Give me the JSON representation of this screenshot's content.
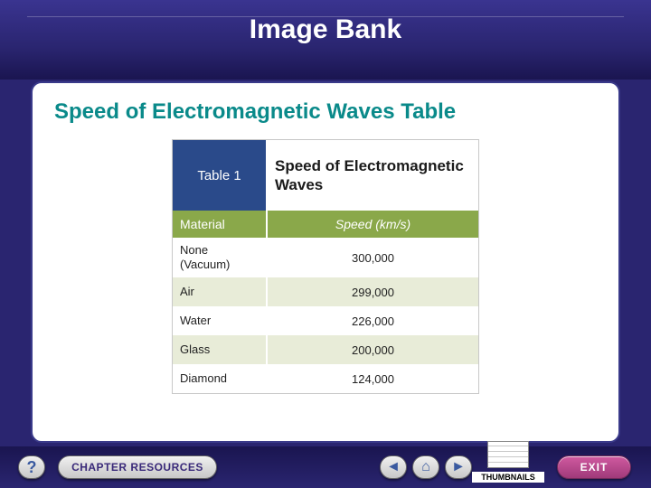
{
  "colors": {
    "page_bg": "#2a2570",
    "panel_bg": "#ffffff",
    "panel_border": "#3a3a8a",
    "title_color": "#ffffff",
    "slide_title_color": "#0a8a8a",
    "table_label_bg": "#2a4a8a",
    "table_header_bg": "#8aa84a",
    "row_alt_bg": "#e8ecd8",
    "exit_bg": "#a03a7a",
    "button_text": "#3a2a7a"
  },
  "header": {
    "title": "Image Bank"
  },
  "content": {
    "slide_title": "Speed of Electromagnetic Waves Table",
    "table": {
      "label": "Table 1",
      "title": "Speed of Electromagnetic Waves",
      "columns": [
        "Material",
        "Speed (km/s)"
      ],
      "rows": [
        {
          "material": "None (Vacuum)",
          "speed": "300,000",
          "tall": true
        },
        {
          "material": "Air",
          "speed": "299,000",
          "tall": false
        },
        {
          "material": "Water",
          "speed": "226,000",
          "tall": false
        },
        {
          "material": "Glass",
          "speed": "200,000",
          "tall": false
        },
        {
          "material": "Diamond",
          "speed": "124,000",
          "tall": false
        }
      ]
    }
  },
  "nav": {
    "help": "?",
    "chapter_resources": "CHAPTER RESOURCES",
    "back": "◄",
    "home": "⌂",
    "forward": "►",
    "thumbnails": "THUMBNAILS",
    "exit": "EXIT"
  }
}
